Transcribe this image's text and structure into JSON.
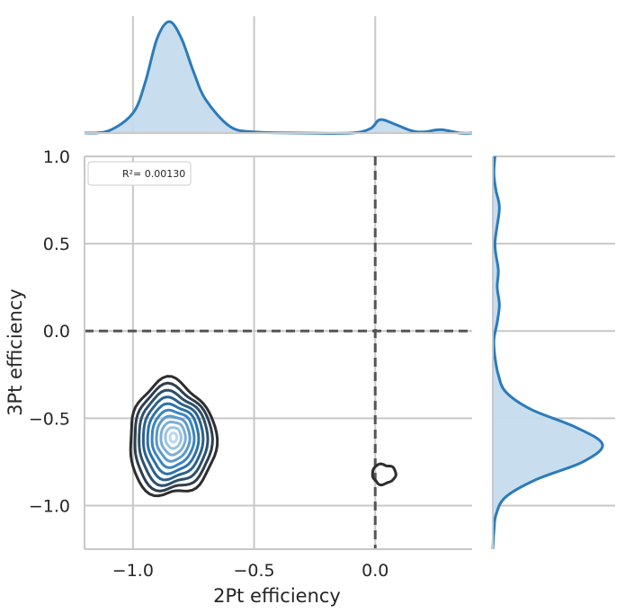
{
  "chart_data": {
    "type": "kde_joint",
    "xlabel": "2Pt efficiency",
    "ylabel": "3Pt efficiency",
    "xlim": [
      -1.2,
      0.4
    ],
    "ylim": [
      -1.25,
      1.0
    ],
    "x_ticks": [
      -1.0,
      -0.5,
      0.0
    ],
    "x_tick_labels": [
      "−1.0",
      "−0.5",
      "0.0"
    ],
    "y_ticks": [
      1.0,
      0.5,
      0.0,
      -0.5,
      -1.0
    ],
    "y_tick_labels": [
      "1.0",
      "0.5",
      "0.0",
      "−0.5",
      "−1.0"
    ],
    "grid": true,
    "legend": {
      "position": "top-left",
      "label": "R²= 0.00130"
    },
    "reference_lines": {
      "x": 0.0,
      "y": 0.0,
      "style": "dashed"
    },
    "contour_centers": [
      {
        "x": -0.84,
        "y": -0.62
      },
      {
        "x": 0.05,
        "y": -0.82
      }
    ],
    "marginal_x": {
      "x": [
        -1.2,
        -1.1,
        -1.0,
        -0.95,
        -0.9,
        -0.85,
        -0.8,
        -0.75,
        -0.7,
        -0.6,
        -0.5,
        -0.3,
        -0.1,
        -0.02,
        0.02,
        0.08,
        0.15,
        0.2,
        0.27,
        0.35,
        0.4
      ],
      "density": [
        0.0,
        0.02,
        0.18,
        0.45,
        0.85,
        1.0,
        0.85,
        0.55,
        0.3,
        0.06,
        0.01,
        0.0,
        0.0,
        0.04,
        0.12,
        0.08,
        0.02,
        0.01,
        0.03,
        0.0,
        0.0
      ]
    },
    "marginal_y": {
      "y": [
        1.0,
        0.9,
        0.8,
        0.7,
        0.5,
        0.35,
        0.25,
        0.15,
        0.05,
        -0.05,
        -0.15,
        -0.25,
        -0.35,
        -0.45,
        -0.55,
        -0.65,
        -0.75,
        -0.85,
        -0.95,
        -1.05,
        -1.15,
        -1.25
      ],
      "density": [
        0.02,
        0.01,
        0.03,
        0.06,
        0.02,
        0.05,
        0.04,
        0.06,
        0.04,
        0.01,
        0.02,
        0.05,
        0.12,
        0.35,
        0.75,
        1.0,
        0.82,
        0.4,
        0.12,
        0.03,
        0.01,
        0.0
      ]
    },
    "colors": {
      "line": "#2b7bba",
      "fill": "#c5dbed",
      "grid": "#c8c8c8",
      "ref_line": "#555555"
    }
  }
}
